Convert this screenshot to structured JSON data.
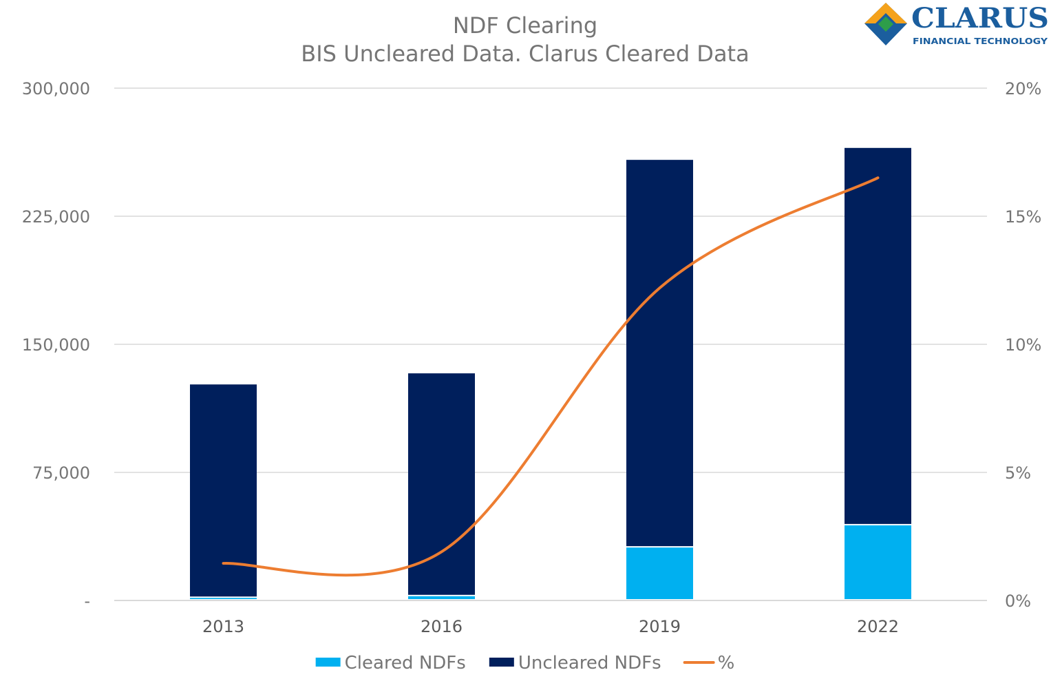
{
  "logo": {
    "name": "CLARUS",
    "tagline": "FINANCIAL TECHNOLOGY"
  },
  "chart_data": {
    "type": "bar",
    "stacked": true,
    "title": "NDF Clearing",
    "subtitle": "BIS Uncleared Data. Clarus Cleared Data",
    "categories": [
      "2013",
      "2016",
      "2019",
      "2022"
    ],
    "series": [
      {
        "name": "Cleared NDFs",
        "type": "bar",
        "axis": "left",
        "color": "#00B0F0",
        "values": [
          1500,
          2500,
          31000,
          44000
        ]
      },
      {
        "name": "Uncleared NDFs",
        "type": "bar",
        "axis": "left",
        "color": "#001F5C",
        "values": [
          125000,
          130500,
          227000,
          221000
        ]
      },
      {
        "name": "%",
        "type": "line",
        "axis": "right",
        "color": "#ED7D31",
        "values": [
          1.45,
          1.9,
          12.2,
          16.5
        ]
      }
    ],
    "y_left": {
      "range": [
        0,
        300000
      ],
      "ticks": [
        0,
        75000,
        150000,
        225000,
        300000
      ],
      "tick_labels": [
        "-",
        "75,000",
        "150,000",
        "225,000",
        "300,000"
      ]
    },
    "y_right": {
      "range": [
        0,
        20
      ],
      "ticks": [
        0,
        5,
        10,
        15,
        20
      ],
      "tick_labels": [
        "0%",
        "5%",
        "10%",
        "15%",
        "20%"
      ]
    },
    "grid": true,
    "legend_position": "bottom"
  }
}
